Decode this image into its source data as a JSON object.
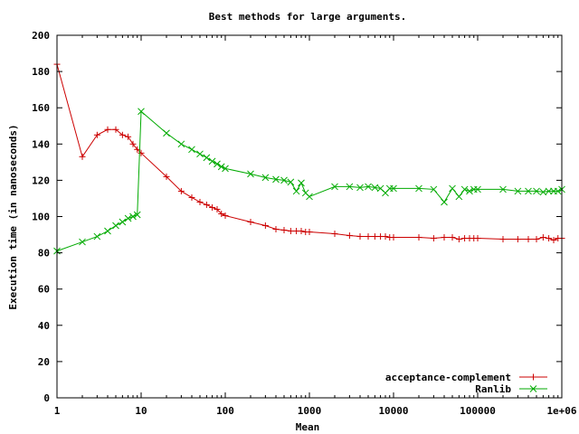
{
  "chart_data": {
    "type": "line",
    "title": "Best methods for large arguments.",
    "xlabel": "Mean",
    "ylabel": "Execution time (in nanoseconds)",
    "xscale": "log",
    "xlim": [
      1,
      1000000
    ],
    "ylim": [
      0,
      200
    ],
    "xticks": [
      {
        "value": 1,
        "label": "1"
      },
      {
        "value": 10,
        "label": "10"
      },
      {
        "value": 100,
        "label": "100"
      },
      {
        "value": 1000,
        "label": "1000"
      },
      {
        "value": 10000,
        "label": "10000"
      },
      {
        "value": 100000,
        "label": "100000"
      },
      {
        "value": 1000000,
        "label": "1e+06"
      }
    ],
    "yticks": [
      {
        "value": 0,
        "label": "0"
      },
      {
        "value": 20,
        "label": "20"
      },
      {
        "value": 40,
        "label": "40"
      },
      {
        "value": 60,
        "label": "60"
      },
      {
        "value": 80,
        "label": "80"
      },
      {
        "value": 100,
        "label": "100"
      },
      {
        "value": 120,
        "label": "120"
      },
      {
        "value": 140,
        "label": "140"
      },
      {
        "value": 160,
        "label": "160"
      },
      {
        "value": 180,
        "label": "180"
      },
      {
        "value": 200,
        "label": "200"
      }
    ],
    "grid": false,
    "legend_position": "bottom-right",
    "series": [
      {
        "name": "acceptance-complement",
        "color": "#cc0000",
        "marker": "plus",
        "points": [
          [
            1,
            184
          ],
          [
            2,
            133
          ],
          [
            3,
            145
          ],
          [
            4,
            148
          ],
          [
            5,
            148
          ],
          [
            6,
            145
          ],
          [
            7,
            144
          ],
          [
            8,
            140
          ],
          [
            9,
            137
          ],
          [
            10,
            135
          ],
          [
            20,
            122
          ],
          [
            30,
            114
          ],
          [
            40,
            110.5
          ],
          [
            50,
            108
          ],
          [
            60,
            106.5
          ],
          [
            70,
            105
          ],
          [
            80,
            104
          ],
          [
            90,
            101.5
          ],
          [
            100,
            100.5
          ],
          [
            200,
            97
          ],
          [
            300,
            95
          ],
          [
            400,
            93
          ],
          [
            500,
            92.5
          ],
          [
            600,
            92
          ],
          [
            700,
            92
          ],
          [
            800,
            92
          ],
          [
            900,
            91.5
          ],
          [
            1000,
            91.5
          ],
          [
            2000,
            90.5
          ],
          [
            3000,
            89.5
          ],
          [
            4000,
            89
          ],
          [
            5000,
            89
          ],
          [
            6000,
            89
          ],
          [
            7000,
            89
          ],
          [
            8000,
            89
          ],
          [
            9000,
            88.5
          ],
          [
            10000,
            88.5
          ],
          [
            20000,
            88.5
          ],
          [
            30000,
            88
          ],
          [
            40000,
            88.5
          ],
          [
            50000,
            88.5
          ],
          [
            60000,
            87.5
          ],
          [
            70000,
            88
          ],
          [
            80000,
            88
          ],
          [
            90000,
            88
          ],
          [
            100000,
            88
          ],
          [
            200000,
            87.5
          ],
          [
            300000,
            87.5
          ],
          [
            400000,
            87.5
          ],
          [
            500000,
            87.5
          ],
          [
            600000,
            88.5
          ],
          [
            700000,
            88
          ],
          [
            800000,
            87
          ],
          [
            900000,
            88
          ],
          [
            1000000,
            88
          ]
        ]
      },
      {
        "name": "Ranlib",
        "color": "#00aa00",
        "marker": "cross",
        "points": [
          [
            1,
            81
          ],
          [
            2,
            86
          ],
          [
            3,
            89
          ],
          [
            4,
            92
          ],
          [
            5,
            95
          ],
          [
            6,
            97
          ],
          [
            7,
            99
          ],
          [
            8,
            100
          ],
          [
            9,
            101
          ],
          [
            10,
            158
          ],
          [
            20,
            146
          ],
          [
            30,
            140
          ],
          [
            40,
            137
          ],
          [
            50,
            134.5
          ],
          [
            60,
            132.5
          ],
          [
            70,
            130.5
          ],
          [
            80,
            129
          ],
          [
            90,
            127.5
          ],
          [
            100,
            126.5
          ],
          [
            200,
            123.5
          ],
          [
            300,
            121.5
          ],
          [
            400,
            120.5
          ],
          [
            500,
            120
          ],
          [
            600,
            119
          ],
          [
            700,
            114
          ],
          [
            800,
            118.5
          ],
          [
            900,
            113
          ],
          [
            1000,
            111
          ],
          [
            2000,
            116.5
          ],
          [
            3000,
            116.5
          ],
          [
            4000,
            116
          ],
          [
            5000,
            116.5
          ],
          [
            6000,
            116
          ],
          [
            7000,
            115.5
          ],
          [
            8000,
            113
          ],
          [
            9000,
            115.5
          ],
          [
            10000,
            115.5
          ],
          [
            20000,
            115.5
          ],
          [
            30000,
            115
          ],
          [
            40000,
            108
          ],
          [
            50000,
            115.5
          ],
          [
            60000,
            111
          ],
          [
            70000,
            115
          ],
          [
            80000,
            114
          ],
          [
            90000,
            115
          ],
          [
            100000,
            115
          ],
          [
            200000,
            115
          ],
          [
            300000,
            114
          ],
          [
            400000,
            114
          ],
          [
            500000,
            114
          ],
          [
            600000,
            113.5
          ],
          [
            700000,
            114
          ],
          [
            800000,
            114
          ],
          [
            900000,
            114
          ],
          [
            1000000,
            115
          ]
        ]
      }
    ]
  }
}
